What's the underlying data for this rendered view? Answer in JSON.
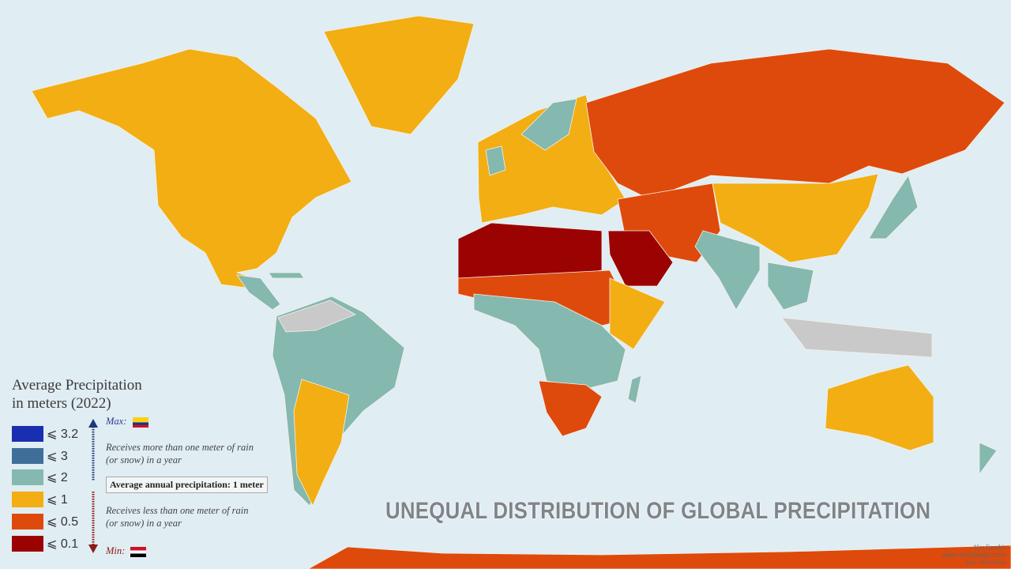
{
  "title": "UNEQUAL DISTRIBUTION OF GLOBAL PRECIPITATION",
  "legend": {
    "title_line1": "Average Precipitation",
    "title_line2": "in meters (2022)",
    "classes": [
      {
        "label": "⩽ 3.2",
        "color": "#1a2fb0"
      },
      {
        "label": "⩽ 3",
        "color": "#3f6f99"
      },
      {
        "label": "⩽ 2",
        "color": "#85b8ae"
      },
      {
        "label": "⩽ 1",
        "color": "#f2ae12"
      },
      {
        "label": "⩽ 0.5",
        "color": "#de4a0c"
      },
      {
        "label": "⩽ 0.1",
        "color": "#9b0303"
      }
    ],
    "max_label": "Max:",
    "max_flag": "Colombia",
    "min_label": "Min:",
    "min_flag": "Egypt",
    "more_note_line1": "Receives more than one meter of rain",
    "more_note_line2": "(or snow) in a year",
    "average_box": "Average annual precipitation: 1 meter",
    "less_note_line1": "Receives less than one meter of rain",
    "less_note_line2": "(or snow) in a year"
  },
  "credits": {
    "author": "Alex Egoshin",
    "site": "www.vividmaps.com",
    "source": "Data: World Bank"
  },
  "colors": {
    "ocean": "#e0edf2",
    "no_data": "#c9c9c9"
  }
}
